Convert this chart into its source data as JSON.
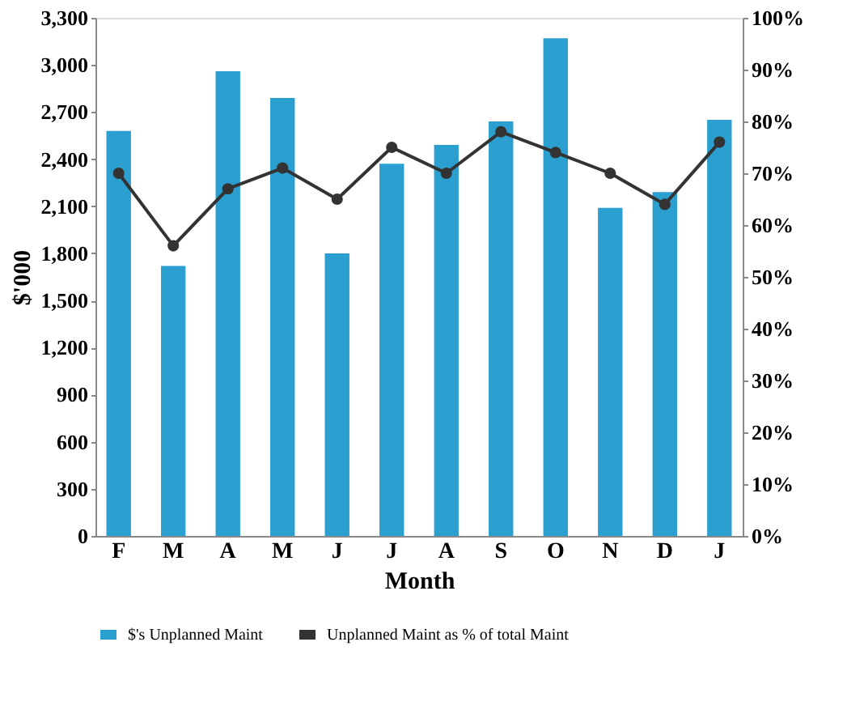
{
  "chart_data": {
    "type": "bar",
    "xlabel": "Month",
    "ylabel": "$'000",
    "categories": [
      "F",
      "M",
      "A",
      "M",
      "J",
      "J",
      "A",
      "S",
      "O",
      "N",
      "D",
      "J"
    ],
    "series": [
      {
        "name": "$'s Unplanned Maint",
        "color": "#2a9fd0",
        "values": [
          2580,
          1720,
          2960,
          2790,
          1800,
          2370,
          2490,
          2640,
          3170,
          2090,
          2190,
          2650
        ]
      },
      {
        "name": "Unplanned Maint as % of total Maint",
        "type": "line",
        "axis": "y2",
        "color": "#333333",
        "values": [
          70,
          56,
          67,
          71,
          65,
          75,
          70,
          78,
          74,
          70,
          64,
          76
        ]
      }
    ],
    "ylim": [
      0,
      3300
    ],
    "yticks": [
      0,
      300,
      600,
      900,
      {
        "value": 1200,
        "label": "1,200"
      },
      {
        "value": 1500,
        "label": "1,500"
      },
      {
        "value": 1800,
        "label": "1,800"
      },
      {
        "value": 2100,
        "label": "2,100"
      },
      {
        "value": 2400,
        "label": "2,400"
      },
      {
        "value": 2700,
        "label": "2,700"
      },
      {
        "value": 3000,
        "label": "3,000"
      },
      {
        "value": 3300,
        "label": "3,300"
      }
    ],
    "y2lim": [
      0,
      100
    ],
    "y2ticks": [
      {
        "value": 0,
        "label": "0%"
      },
      {
        "value": 10,
        "label": "10%"
      },
      {
        "value": 20,
        "label": "20%"
      },
      {
        "value": 30,
        "label": "30%"
      },
      {
        "value": 40,
        "label": "40%"
      },
      {
        "value": 50,
        "label": "50%"
      },
      {
        "value": 60,
        "label": "60%"
      },
      {
        "value": 70,
        "label": "70%"
      },
      {
        "value": 80,
        "label": "80%"
      },
      {
        "value": 90,
        "label": "90%"
      },
      {
        "value": 100,
        "label": "100%"
      }
    ],
    "grid": false,
    "legend": "bottom",
    "marker": "circle",
    "line_style": "solid"
  }
}
